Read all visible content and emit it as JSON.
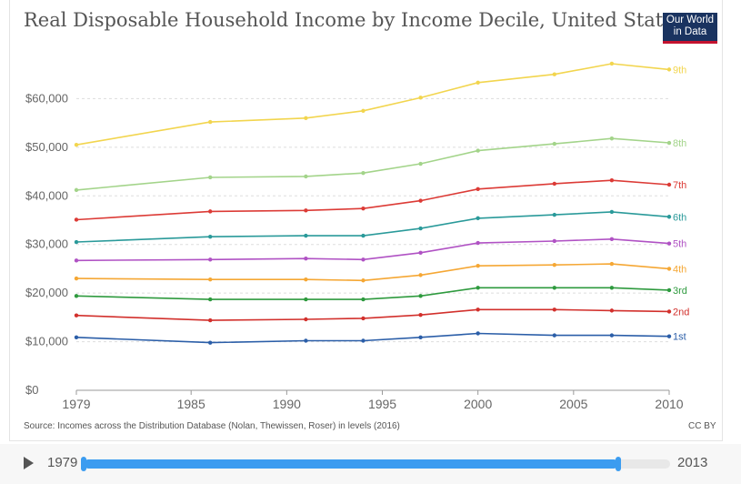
{
  "header": {
    "title": "Real Disposable Household Income by Income Decile, United States",
    "logo_line1": "Our World",
    "logo_line2": "in Data"
  },
  "footer": {
    "source": "Source: Incomes across the Distribution Database (Nolan, Thewissen, Roser) in levels (2016)",
    "license": "CC BY"
  },
  "timeline": {
    "start": "1979",
    "end": "2013",
    "selected_start": 1979,
    "selected_end": 2010
  },
  "chart_data": {
    "type": "line",
    "title": "Real Disposable Household Income by Income Decile, United States",
    "xlabel": "",
    "ylabel": "",
    "xlim": [
      1979,
      2010
    ],
    "ylim": [
      0,
      70000
    ],
    "x_ticks": [
      1979,
      1985,
      1990,
      1995,
      2000,
      2005,
      2010
    ],
    "y_ticks": [
      0,
      10000,
      20000,
      30000,
      40000,
      50000,
      60000
    ],
    "y_tick_labels": [
      "$0",
      "$10,000",
      "$20,000",
      "$30,000",
      "$40,000",
      "$50,000",
      "$60,000"
    ],
    "grid": "horizontal dashed",
    "x": [
      1979,
      1986,
      1991,
      1994,
      1997,
      2000,
      2004,
      2007,
      2010
    ],
    "series": [
      {
        "name": "9th",
        "color": "#f2d54e",
        "values": [
          50500,
          55200,
          56000,
          57500,
          60200,
          63300,
          65000,
          67200,
          66000
        ]
      },
      {
        "name": "8th",
        "color": "#a3d48a",
        "values": [
          41200,
          43800,
          44000,
          44700,
          46600,
          49300,
          50700,
          51800,
          50900
        ]
      },
      {
        "name": "7th",
        "color": "#dc3b36",
        "values": [
          35100,
          36800,
          37000,
          37400,
          39000,
          41400,
          42500,
          43200,
          42300
        ]
      },
      {
        "name": "6th",
        "color": "#2a9a9a",
        "values": [
          30500,
          31600,
          31800,
          31800,
          33300,
          35400,
          36100,
          36700,
          35700
        ]
      },
      {
        "name": "5th",
        "color": "#b052c4",
        "values": [
          26700,
          26900,
          27100,
          26900,
          28300,
          30300,
          30700,
          31100,
          30200
        ]
      },
      {
        "name": "4th",
        "color": "#f5a734",
        "values": [
          23000,
          22800,
          22800,
          22600,
          23700,
          25600,
          25800,
          26000,
          25000
        ]
      },
      {
        "name": "3rd",
        "color": "#2e9a3e",
        "values": [
          19400,
          18700,
          18700,
          18700,
          19400,
          21100,
          21100,
          21100,
          20600
        ]
      },
      {
        "name": "2nd",
        "color": "#d2302c",
        "values": [
          15400,
          14400,
          14600,
          14800,
          15500,
          16600,
          16600,
          16400,
          16200
        ]
      },
      {
        "name": "1st",
        "color": "#2b5ea8",
        "values": [
          10900,
          9800,
          10200,
          10200,
          10900,
          11700,
          11300,
          11300,
          11100
        ]
      }
    ]
  }
}
